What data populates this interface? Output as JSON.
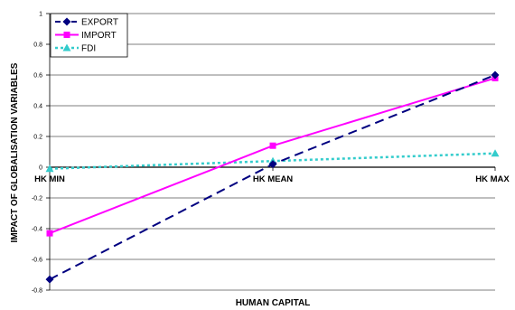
{
  "chart_data": {
    "type": "line",
    "categories": [
      "HK MIN",
      "HK MEAN",
      "HK MAX"
    ],
    "xlabel": "HUMAN CAPITAL",
    "ylabel": "IMPACT OF GLOBALISATION VARIABLES",
    "ylim": [
      -0.8,
      1
    ],
    "yticks": [
      1,
      0.8,
      0.6,
      0.4,
      0.2,
      0,
      -0.2,
      -0.4,
      -0.6,
      -0.8
    ],
    "ytick_labels": [
      "1",
      "0.8",
      "0.6",
      "0.4",
      "0.2",
      "0",
      "-0.2",
      "-0.4",
      "-0.6",
      "-0.8"
    ],
    "grid": true,
    "legend_position": "top-left",
    "series": [
      {
        "name": "EXPORT",
        "values": [
          -0.73,
          0.02,
          0.6
        ],
        "color": "#000080",
        "marker": "diamond",
        "dash": "long-dash"
      },
      {
        "name": "IMPORT",
        "values": [
          -0.43,
          0.14,
          0.58
        ],
        "color": "#FF00FF",
        "marker": "square",
        "dash": "solid"
      },
      {
        "name": "FDI",
        "values": [
          -0.01,
          0.04,
          0.09
        ],
        "color": "#33CCCC",
        "marker": "triangle",
        "dash": "dotted"
      }
    ]
  }
}
